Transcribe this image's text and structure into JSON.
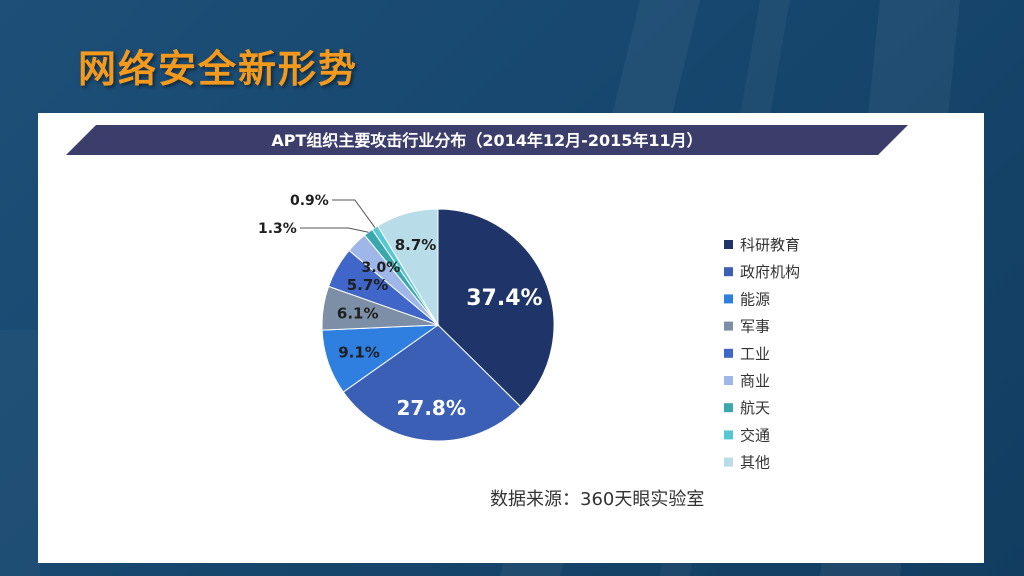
{
  "slide": {
    "title": "网络安全新形势"
  },
  "colors": {
    "title": "#f39a1e",
    "background": "#1a4a72",
    "banner": "#3b3d6b"
  },
  "chart_data": {
    "type": "pie",
    "title": "APT组织主要攻击行业分布（2014年12月-2015年11月）",
    "legend_position": "right",
    "slices": [
      {
        "name": "科研教育",
        "value": 37.4,
        "label": "37.4%",
        "color": "#1f3468"
      },
      {
        "name": "政府机构",
        "value": 27.8,
        "label": "27.8%",
        "color": "#3a5fb5"
      },
      {
        "name": "能源",
        "value": 9.1,
        "label": "9.1%",
        "color": "#2f7fe0"
      },
      {
        "name": "军事",
        "value": 6.1,
        "label": "6.1%",
        "color": "#7d8fa6"
      },
      {
        "name": "工业",
        "value": 5.7,
        "label": "5.7%",
        "color": "#3f66c8"
      },
      {
        "name": "商业",
        "value": 3.0,
        "label": "3.0%",
        "color": "#9fb6e8"
      },
      {
        "name": "航天",
        "value": 1.3,
        "label": "1.3%",
        "color": "#3aa7ad"
      },
      {
        "name": "交通",
        "value": 0.9,
        "label": "0.9%",
        "color": "#57c8d3"
      },
      {
        "name": "其他",
        "value": 8.7,
        "label": "8.7%",
        "color": "#b8dde8"
      }
    ],
    "source": "数据来源：360天眼实验室"
  }
}
